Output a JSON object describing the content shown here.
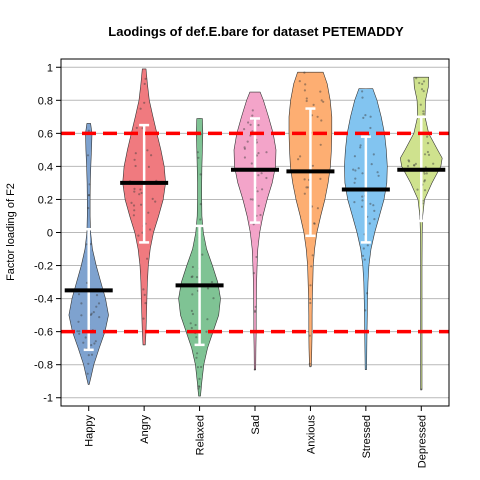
{
  "chart_data": {
    "type": "violin",
    "title": "Laodings of def.E.bare for dataset PETEMADDY",
    "xlabel": "",
    "ylabel": "Factor loading of F2",
    "ylim": [
      -1.05,
      1.05
    ],
    "yticks": [
      1,
      0.8,
      0.6,
      0.4,
      0.2,
      0,
      -0.2,
      -0.4,
      -0.6,
      -0.8,
      -1
    ],
    "ytick_labels": [
      "1",
      "0.8",
      "0.6",
      "0.4",
      "0.2",
      "0",
      "-0.2",
      "-0.4",
      "-0.6",
      "-0.8",
      "-1"
    ],
    "grid": true,
    "reference_lines": [
      0.6,
      -0.6
    ],
    "reference_line_color": "#ff0000",
    "series": [
      {
        "name": "Happy",
        "color": "#7ea2cf",
        "mean": -0.35,
        "error_low": -0.71,
        "error_high": 0.02,
        "range": [
          -0.92,
          0.66
        ],
        "density": [
          [
            0.66,
            0.08
          ],
          [
            0.6,
            0.14
          ],
          [
            0.5,
            0.12
          ],
          [
            0.4,
            0.09
          ],
          [
            0.3,
            0.07
          ],
          [
            0.2,
            0.06
          ],
          [
            0.1,
            0.06
          ],
          [
            0.0,
            0.08
          ],
          [
            -0.1,
            0.16
          ],
          [
            -0.2,
            0.32
          ],
          [
            -0.3,
            0.52
          ],
          [
            -0.4,
            0.72
          ],
          [
            -0.5,
            0.85
          ],
          [
            -0.6,
            0.7
          ],
          [
            -0.7,
            0.45
          ],
          [
            -0.8,
            0.22
          ],
          [
            -0.88,
            0.09
          ],
          [
            -0.92,
            0.02
          ]
        ]
      },
      {
        "name": "Angry",
        "color": "#f07a7f",
        "mean": 0.3,
        "error_low": -0.06,
        "error_high": 0.65,
        "range": [
          -0.68,
          0.99
        ],
        "density": [
          [
            0.99,
            0.08
          ],
          [
            0.9,
            0.14
          ],
          [
            0.8,
            0.22
          ],
          [
            0.7,
            0.38
          ],
          [
            0.6,
            0.55
          ],
          [
            0.5,
            0.72
          ],
          [
            0.4,
            0.86
          ],
          [
            0.3,
            0.92
          ],
          [
            0.2,
            0.82
          ],
          [
            0.1,
            0.62
          ],
          [
            0.0,
            0.4
          ],
          [
            -0.1,
            0.26
          ],
          [
            -0.2,
            0.18
          ],
          [
            -0.3,
            0.14
          ],
          [
            -0.4,
            0.12
          ],
          [
            -0.5,
            0.1
          ],
          [
            -0.6,
            0.08
          ],
          [
            -0.68,
            0.05
          ]
        ]
      },
      {
        "name": "Relaxed",
        "color": "#7fc394",
        "mean": -0.32,
        "error_low": -0.68,
        "error_high": 0.04,
        "range": [
          -0.99,
          0.69
        ],
        "density": [
          [
            0.69,
            0.12
          ],
          [
            0.6,
            0.14
          ],
          [
            0.5,
            0.12
          ],
          [
            0.4,
            0.1
          ],
          [
            0.3,
            0.09
          ],
          [
            0.2,
            0.09
          ],
          [
            0.1,
            0.1
          ],
          [
            0.0,
            0.16
          ],
          [
            -0.1,
            0.3
          ],
          [
            -0.2,
            0.55
          ],
          [
            -0.3,
            0.78
          ],
          [
            -0.4,
            0.9
          ],
          [
            -0.5,
            0.82
          ],
          [
            -0.6,
            0.58
          ],
          [
            -0.7,
            0.34
          ],
          [
            -0.8,
            0.18
          ],
          [
            -0.9,
            0.1
          ],
          [
            -0.99,
            0.04
          ]
        ]
      },
      {
        "name": "Sad",
        "color": "#f3a4c9",
        "mean": 0.38,
        "error_low": 0.06,
        "error_high": 0.69,
        "range": [
          -0.83,
          0.85
        ],
        "density": [
          [
            0.85,
            0.22
          ],
          [
            0.8,
            0.36
          ],
          [
            0.7,
            0.58
          ],
          [
            0.6,
            0.78
          ],
          [
            0.5,
            0.9
          ],
          [
            0.4,
            0.88
          ],
          [
            0.3,
            0.74
          ],
          [
            0.2,
            0.52
          ],
          [
            0.1,
            0.34
          ],
          [
            0.0,
            0.2
          ],
          [
            -0.1,
            0.12
          ],
          [
            -0.2,
            0.09
          ],
          [
            -0.3,
            0.07
          ],
          [
            -0.4,
            0.06
          ],
          [
            -0.5,
            0.05
          ],
          [
            -0.6,
            0.05
          ],
          [
            -0.7,
            0.04
          ],
          [
            -0.83,
            0.03
          ]
        ]
      },
      {
        "name": "Anxious",
        "color": "#fdae72",
        "mean": 0.37,
        "error_low": -0.02,
        "error_high": 0.75,
        "range": [
          -0.81,
          0.97
        ],
        "density": [
          [
            0.97,
            0.55
          ],
          [
            0.9,
            0.72
          ],
          [
            0.8,
            0.85
          ],
          [
            0.7,
            0.92
          ],
          [
            0.6,
            0.92
          ],
          [
            0.5,
            0.9
          ],
          [
            0.4,
            0.86
          ],
          [
            0.3,
            0.76
          ],
          [
            0.2,
            0.62
          ],
          [
            0.1,
            0.44
          ],
          [
            0.0,
            0.28
          ],
          [
            -0.1,
            0.18
          ],
          [
            -0.2,
            0.12
          ],
          [
            -0.3,
            0.1
          ],
          [
            -0.4,
            0.08
          ],
          [
            -0.5,
            0.07
          ],
          [
            -0.6,
            0.07
          ],
          [
            -0.7,
            0.06
          ],
          [
            -0.81,
            0.04
          ]
        ]
      },
      {
        "name": "Stressed",
        "color": "#82c4f0",
        "mean": 0.26,
        "error_low": -0.06,
        "error_high": 0.58,
        "range": [
          -0.83,
          0.87
        ],
        "density": [
          [
            0.87,
            0.3
          ],
          [
            0.8,
            0.48
          ],
          [
            0.7,
            0.66
          ],
          [
            0.6,
            0.8
          ],
          [
            0.5,
            0.88
          ],
          [
            0.4,
            0.92
          ],
          [
            0.3,
            0.9
          ],
          [
            0.2,
            0.78
          ],
          [
            0.1,
            0.58
          ],
          [
            0.0,
            0.38
          ],
          [
            -0.1,
            0.22
          ],
          [
            -0.2,
            0.13
          ],
          [
            -0.3,
            0.09
          ],
          [
            -0.4,
            0.07
          ],
          [
            -0.5,
            0.06
          ],
          [
            -0.6,
            0.05
          ],
          [
            -0.7,
            0.04
          ],
          [
            -0.83,
            0.03
          ]
        ]
      },
      {
        "name": "Depressed",
        "color": "#cfe28e",
        "mean": 0.38,
        "error_low": 0.07,
        "error_high": 0.7,
        "range": [
          -0.95,
          0.94
        ],
        "density": [
          [
            0.94,
            0.32
          ],
          [
            0.88,
            0.3
          ],
          [
            0.8,
            0.18
          ],
          [
            0.7,
            0.16
          ],
          [
            0.6,
            0.32
          ],
          [
            0.5,
            0.7
          ],
          [
            0.45,
            0.9
          ],
          [
            0.4,
            0.84
          ],
          [
            0.3,
            0.46
          ],
          [
            0.2,
            0.14
          ],
          [
            0.1,
            0.06
          ],
          [
            0.0,
            0.04
          ],
          [
            -0.2,
            0.03
          ],
          [
            -0.4,
            0.03
          ],
          [
            -0.6,
            0.03
          ],
          [
            -0.8,
            0.03
          ],
          [
            -0.95,
            0.03
          ]
        ]
      }
    ]
  }
}
